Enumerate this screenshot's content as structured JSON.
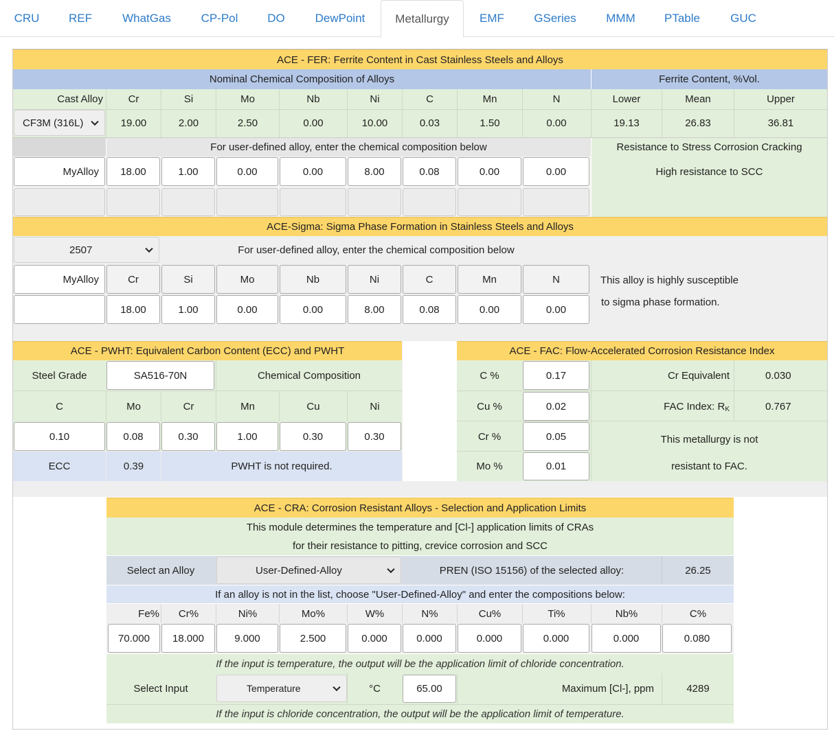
{
  "tabs": [
    "CRU",
    "REF",
    "WhatGas",
    "CP-Pol",
    "DO",
    "DewPoint",
    "Metallurgy",
    "EMF",
    "GSeries",
    "MMM",
    "PTable",
    "GUC"
  ],
  "active_tab": "Metallurgy",
  "fer": {
    "title": "ACE - FER: Ferrite Content in Cast Stainless Steels and Alloys",
    "nominal_header": "Nominal Chemical Composition of Alloys",
    "ferrite_header": "Ferrite Content, %Vol.",
    "cols": [
      "Cast Alloy",
      "Cr",
      "Si",
      "Mo",
      "Nb",
      "Ni",
      "C",
      "Mn",
      "N"
    ],
    "ferrite_cols": [
      "Lower",
      "Mean",
      "Upper"
    ],
    "selected_alloy": "CF3M (316L)",
    "nominal_values": [
      "19.00",
      "2.00",
      "2.50",
      "0.00",
      "10.00",
      "0.03",
      "1.50",
      "0.00"
    ],
    "ferrite_values": [
      "19.13",
      "26.83",
      "36.81"
    ],
    "user_prompt": "For user-defined alloy, enter the chemical composition below",
    "scc_header": "Resistance to Stress Corrosion Cracking",
    "user_name": "MyAlloy",
    "user_values": [
      "18.00",
      "1.00",
      "0.00",
      "0.00",
      "8.00",
      "0.08",
      "0.00",
      "0.00"
    ],
    "scc_result": "High resistance to SCC"
  },
  "sigma": {
    "title": "ACE-Sigma: Sigma Phase Formation in Stainless Steels and Alloys",
    "selected": "2507",
    "prompt": "For user-defined alloy, enter the chemical composition below",
    "name": "MyAlloy",
    "cols": [
      "Cr",
      "Si",
      "Mo",
      "Nb",
      "Ni",
      "C",
      "Mn",
      "N"
    ],
    "values": [
      "18.00",
      "1.00",
      "0.00",
      "0.00",
      "8.00",
      "0.08",
      "0.00",
      "0.00"
    ],
    "result_line1": "This alloy is highly susceptible",
    "result_line2": "to sigma phase formation."
  },
  "pwht": {
    "title": "ACE - PWHT: Equivalent Carbon Content (ECC) and PWHT",
    "grade_label": "Steel Grade",
    "grade_value": "SA516-70N",
    "chem_label": "Chemical Composition",
    "cols": [
      "C",
      "Mo",
      "Cr",
      "Mn",
      "Cu",
      "Ni"
    ],
    "values": [
      "0.10",
      "0.08",
      "0.30",
      "1.00",
      "0.30",
      "0.30"
    ],
    "ecc_label": "ECC",
    "ecc_value": "0.39",
    "result": "PWHT is not required."
  },
  "fac": {
    "title": "ACE - FAC: Flow-Accelerated Corrosion Resistance Index",
    "rows": [
      {
        "label": "C %",
        "value": "0.17"
      },
      {
        "label": "Cu %",
        "value": "0.02"
      },
      {
        "label": "Cr %",
        "value": "0.05"
      },
      {
        "label": "Mo %",
        "value": "0.01"
      }
    ],
    "cr_eq_label": "Cr Equivalent",
    "cr_eq_value": "0.030",
    "index_label": "FAC Index: R",
    "index_sub": "K",
    "index_value": "0.767",
    "result_line1": "This metallurgy is not",
    "result_line2": "resistant to FAC."
  },
  "cra": {
    "title": "ACE - CRA: Corrosion Resistant Alloys - Selection and Application Limits",
    "desc1": "This module determines the temperature and [Cl-] application limits of CRAs",
    "desc2": "for their resistance to pitting, crevice corrosion and SCC",
    "select_label": "Select an Alloy",
    "selected_alloy": "User-Defined-Alloy",
    "pren_label": "PREN (ISO 15156) of the selected alloy:",
    "pren_value": "26.25",
    "user_prompt": "If an alloy is not in the list, choose \"User-Defined-Alloy\" and enter the compositions below:",
    "cols": [
      "Fe%",
      "Cr%",
      "Ni%",
      "Mo%",
      "W%",
      "N%",
      "Cu%",
      "Ti%",
      "Nb%",
      "C%"
    ],
    "values": [
      "70.000",
      "18.000",
      "9.000",
      "2.500",
      "0.000",
      "0.000",
      "0.000",
      "0.000",
      "0.000",
      "0.080"
    ],
    "note_temp": "If the input is temperature, the output will be the application limit of chloride concentration.",
    "input_label": "Select Input",
    "input_selected": "Temperature",
    "unit": "°C",
    "input_value": "65.00",
    "output_label": "Maximum [Cl-], ppm",
    "output_value": "4289",
    "note_cl": "If the input is chloride concentration, the output will be the application limit of temperature."
  }
}
